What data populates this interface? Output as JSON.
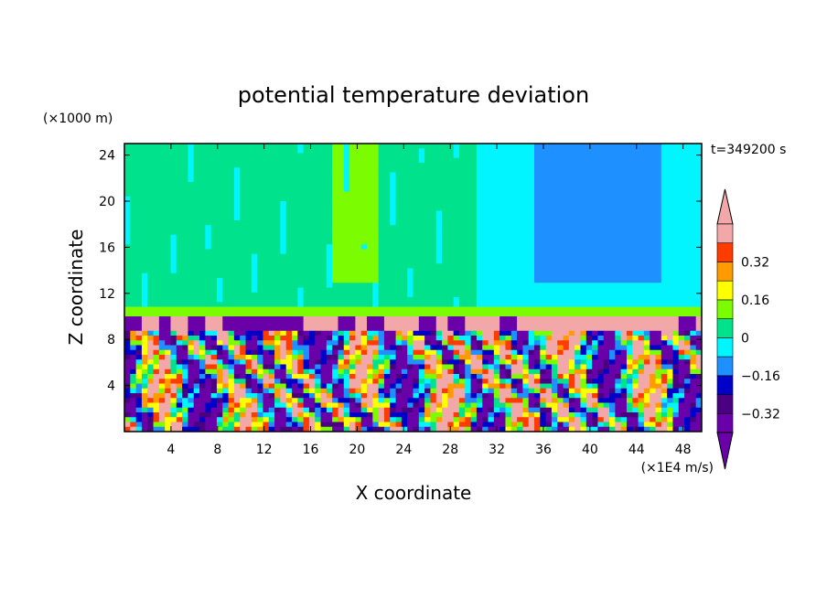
{
  "chart_data": {
    "type": "heatmap",
    "title": "potential temperature deviation",
    "xlabel": "X coordinate",
    "ylabel": "Z coordinate",
    "x_unit": "(×1E4 m/s)",
    "y_unit": "(×1000 m)",
    "time_label": "t=349200 s",
    "xlim": [
      0,
      49.6
    ],
    "ylim": [
      0,
      25
    ],
    "x_ticks": [
      4,
      8,
      12,
      16,
      20,
      24,
      28,
      32,
      36,
      40,
      44,
      48
    ],
    "y_ticks": [
      4,
      8,
      12,
      16,
      20,
      24
    ],
    "colorbar": {
      "levels": [
        -0.4,
        -0.32,
        -0.24,
        -0.16,
        -0.08,
        0,
        0.08,
        0.16,
        0.24,
        0.32,
        0.4
      ],
      "labels": [
        "0.32",
        "0.16",
        "0",
        "−0.16",
        "−0.32"
      ],
      "label_values": [
        0.32,
        0.16,
        0,
        -0.16,
        -0.32
      ],
      "colors": [
        "#6a00a8",
        "#4b0082",
        "#0000c8",
        "#1e90ff",
        "#00f5ff",
        "#00e38c",
        "#7cfc00",
        "#ffff00",
        "#ff9a00",
        "#ff3c00",
        "#f2a8a8"
      ],
      "extend": "both"
    },
    "grid": false,
    "legend": "colorbar-right"
  }
}
